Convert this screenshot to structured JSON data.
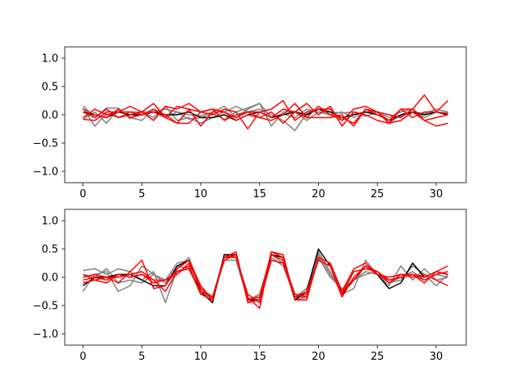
{
  "chart_data": [
    {
      "type": "line",
      "xlim": [
        -1.55,
        32.55
      ],
      "ylim": [
        -1.2,
        1.2
      ],
      "xticks": [
        0,
        5,
        10,
        15,
        20,
        25,
        30
      ],
      "yticks": [
        -1.0,
        -0.5,
        0.0,
        0.5,
        1.0
      ],
      "xtick_labels": [
        "0",
        "5",
        "10",
        "15",
        "20",
        "25",
        "30"
      ],
      "ytick_labels": [
        "−1.0",
        "−0.5",
        "0.0",
        "0.5",
        "1.0"
      ],
      "grid": false,
      "series_colors": {
        "gray": "#808080",
        "black": "#000000",
        "red": "#ff0000"
      },
      "series": [
        {
          "color": "gray",
          "values": [
            0.16,
            -0.05,
            0.12,
            0.12,
            -0.07,
            0.05,
            0.05,
            0.1,
            0.05,
            -0.08,
            -0.05,
            0.02,
            -0.08,
            0.05,
            0.12,
            0.2,
            -0.05,
            0.02,
            -0.05,
            0.1,
            0.05,
            0.05,
            0.03,
            0.05,
            -0.03,
            0.05,
            -0.1,
            -0.03,
            0.05,
            0.02,
            0.1,
            0.05
          ]
        },
        {
          "color": "gray",
          "values": [
            0.12,
            -0.2,
            0.02,
            -0.05,
            0.05,
            0.05,
            -0.05,
            0.15,
            -0.1,
            -0.05,
            -0.15,
            -0.05,
            0.05,
            0.15,
            0.05,
            0.1,
            0.0,
            -0.1,
            -0.28,
            0.02,
            0.1,
            0.0,
            0.05,
            -0.05,
            0.05,
            0.05,
            -0.15,
            0.0,
            0.05,
            -0.05,
            0.05,
            0.03
          ]
        },
        {
          "color": "gray",
          "values": [
            -0.08,
            0.05,
            -0.15,
            0.1,
            -0.05,
            -0.1,
            0.1,
            -0.05,
            0.05,
            0.0,
            -0.02,
            0.05,
            0.15,
            -0.05,
            0.1,
            0.2,
            -0.2,
            0.05,
            0.05,
            -0.1,
            0.05,
            0.0,
            -0.1,
            0.0,
            0.05,
            0.05,
            -0.05,
            0.05,
            0.1,
            -0.05,
            0.05,
            0.0
          ]
        },
        {
          "color": "black",
          "values": [
            0.05,
            0.0,
            -0.05,
            0.05,
            0.0,
            0.0,
            0.05,
            0.0,
            0.0,
            0.05,
            -0.05,
            -0.05,
            0.0,
            -0.1,
            0.0,
            0.05,
            -0.05,
            0.0,
            0.05,
            0.0,
            0.1,
            0.05,
            -0.05,
            0.0,
            0.05,
            0.0,
            -0.1,
            0.0,
            0.05,
            0.0,
            0.05,
            0.0
          ]
        },
        {
          "color": "red",
          "values": [
            0.05,
            -0.05,
            0.1,
            -0.05,
            0.0,
            0.05,
            0.2,
            -0.05,
            0.15,
            0.1,
            0.05,
            0.1,
            0.05,
            -0.05,
            0.05,
            0.05,
            0.1,
            0.25,
            -0.1,
            0.05,
            0.1,
            0.1,
            -0.1,
            0.1,
            0.15,
            0.05,
            -0.15,
            0.1,
            0.1,
            0.35,
            0.05,
            0.25
          ]
        },
        {
          "color": "red",
          "values": [
            -0.05,
            0.1,
            0.0,
            0.05,
            0.15,
            0.05,
            -0.1,
            0.15,
            0.1,
            0.2,
            0.05,
            0.0,
            0.1,
            0.05,
            -0.25,
            0.05,
            -0.05,
            0.1,
            0.05,
            0.2,
            0.0,
            0.15,
            -0.2,
            0.05,
            0.0,
            -0.1,
            -0.15,
            -0.1,
            0.05,
            -0.1,
            -0.2,
            -0.15
          ]
        },
        {
          "color": "red",
          "values": [
            -0.08,
            -0.1,
            0.05,
            0.05,
            0.05,
            0.0,
            0.05,
            -0.05,
            -0.15,
            0.1,
            -0.2,
            0.05,
            0.05,
            -0.1,
            0.0,
            -0.05,
            0.05,
            -0.15,
            0.05,
            -0.05,
            0.15,
            0.0,
            -0.05,
            -0.15,
            0.1,
            0.0,
            -0.1,
            0.1,
            -0.05,
            0.05,
            0.05,
            0.02
          ]
        },
        {
          "color": "red",
          "values": [
            0.1,
            0.0,
            -0.05,
            0.1,
            -0.05,
            0.0,
            0.1,
            0.0,
            -0.15,
            -0.15,
            0.05,
            0.1,
            -0.1,
            0.0,
            0.05,
            -0.05,
            -0.1,
            0.0,
            0.2,
            -0.05,
            -0.05,
            -0.05,
            0.0,
            -0.2,
            0.1,
            0.05,
            0.0,
            -0.05,
            0.1,
            -0.1,
            -0.05,
            0.0
          ]
        }
      ]
    },
    {
      "type": "line",
      "xlim": [
        -1.55,
        32.55
      ],
      "ylim": [
        -1.2,
        1.2
      ],
      "xticks": [
        0,
        5,
        10,
        15,
        20,
        25,
        30
      ],
      "yticks": [
        -1.0,
        -0.5,
        0.0,
        0.5,
        1.0
      ],
      "xtick_labels": [
        "0",
        "5",
        "10",
        "15",
        "20",
        "25",
        "30"
      ],
      "ytick_labels": [
        "−1.0",
        "−0.5",
        "0.0",
        "0.5",
        "1.0"
      ],
      "grid": false,
      "series_colors": {
        "gray": "#808080",
        "black": "#000000",
        "red": "#ff0000"
      },
      "series": [
        {
          "color": "gray",
          "values": [
            0.12,
            0.15,
            0.05,
            0.15,
            0.1,
            -0.05,
            0.1,
            -0.45,
            0.15,
            0.35,
            -0.2,
            -0.4,
            0.4,
            0.35,
            -0.4,
            -0.3,
            0.35,
            0.2,
            -0.35,
            -0.35,
            0.45,
            0.1,
            -0.3,
            -0.2,
            0.3,
            0.05,
            -0.1,
            -0.05,
            0.2,
            0.05,
            -0.15,
            0.05
          ]
        },
        {
          "color": "gray",
          "values": [
            -0.25,
            0.05,
            0.1,
            -0.25,
            -0.15,
            0.2,
            0.05,
            -0.05,
            0.25,
            0.3,
            -0.2,
            -0.4,
            0.3,
            0.3,
            -0.4,
            -0.35,
            0.4,
            0.25,
            -0.4,
            -0.35,
            0.4,
            0.05,
            -0.25,
            -0.05,
            0.1,
            0.05,
            -0.15,
            0.2,
            -0.05,
            0.15,
            -0.05,
            0.0
          ]
        },
        {
          "color": "gray",
          "values": [
            0.05,
            0.0,
            0.15,
            -0.1,
            -0.05,
            -0.1,
            0.05,
            -0.1,
            0.2,
            0.15,
            -0.3,
            -0.35,
            0.35,
            0.4,
            -0.45,
            -0.3,
            0.4,
            0.3,
            -0.35,
            -0.2,
            0.35,
            0.0,
            -0.2,
            -0.05,
            0.05,
            0.1,
            -0.1,
            0.0,
            0.1,
            -0.05,
            0.05,
            0.0
          ]
        },
        {
          "color": "black",
          "values": [
            -0.15,
            0.0,
            0.0,
            0.05,
            0.05,
            -0.05,
            -0.15,
            -0.15,
            0.2,
            0.3,
            -0.25,
            -0.45,
            0.4,
            0.4,
            -0.4,
            -0.4,
            0.4,
            0.35,
            -0.4,
            -0.25,
            0.5,
            0.2,
            -0.3,
            -0.05,
            0.2,
            0.05,
            -0.2,
            -0.1,
            0.25,
            0.0,
            0.1,
            0.05
          ]
        },
        {
          "color": "red",
          "values": [
            0.0,
            0.05,
            0.0,
            -0.1,
            0.1,
            0.3,
            -0.2,
            -0.15,
            0.15,
            0.3,
            -0.15,
            -0.4,
            0.35,
            0.4,
            -0.35,
            -0.55,
            0.45,
            0.4,
            -0.4,
            -0.4,
            0.35,
            0.25,
            -0.25,
            0.15,
            0.25,
            0.05,
            -0.05,
            0.0,
            0.05,
            0.0,
            0.1,
            0.2
          ]
        },
        {
          "color": "red",
          "values": [
            0.05,
            -0.05,
            0.0,
            0.0,
            0.05,
            0.1,
            -0.05,
            -0.05,
            0.05,
            0.25,
            -0.2,
            -0.35,
            0.35,
            0.45,
            -0.45,
            -0.4,
            0.45,
            0.35,
            -0.35,
            -0.3,
            0.3,
            0.2,
            -0.35,
            0.0,
            0.2,
            0.05,
            0.0,
            0.05,
            0.0,
            0.05,
            -0.05,
            -0.15
          ]
        },
        {
          "color": "red",
          "values": [
            -0.05,
            0.0,
            -0.05,
            0.05,
            0.0,
            0.05,
            -0.05,
            -0.25,
            0.1,
            0.2,
            -0.3,
            -0.4,
            0.35,
            0.35,
            -0.3,
            -0.45,
            0.3,
            0.25,
            -0.35,
            -0.25,
            0.3,
            0.2,
            -0.3,
            0.1,
            0.15,
            0.1,
            -0.05,
            0.0,
            0.05,
            -0.1,
            0.1,
            0.05
          ]
        },
        {
          "color": "red",
          "values": [
            -0.1,
            -0.05,
            -0.1,
            0.05,
            0.0,
            0.05,
            -0.1,
            -0.05,
            0.1,
            0.15,
            -0.25,
            -0.35,
            0.3,
            0.4,
            -0.4,
            -0.35,
            0.4,
            0.3,
            -0.3,
            -0.35,
            0.35,
            0.25,
            -0.25,
            -0.05,
            0.2,
            0.1,
            -0.1,
            0.05,
            0.05,
            -0.05,
            0.05,
            0.1
          ]
        }
      ]
    }
  ]
}
